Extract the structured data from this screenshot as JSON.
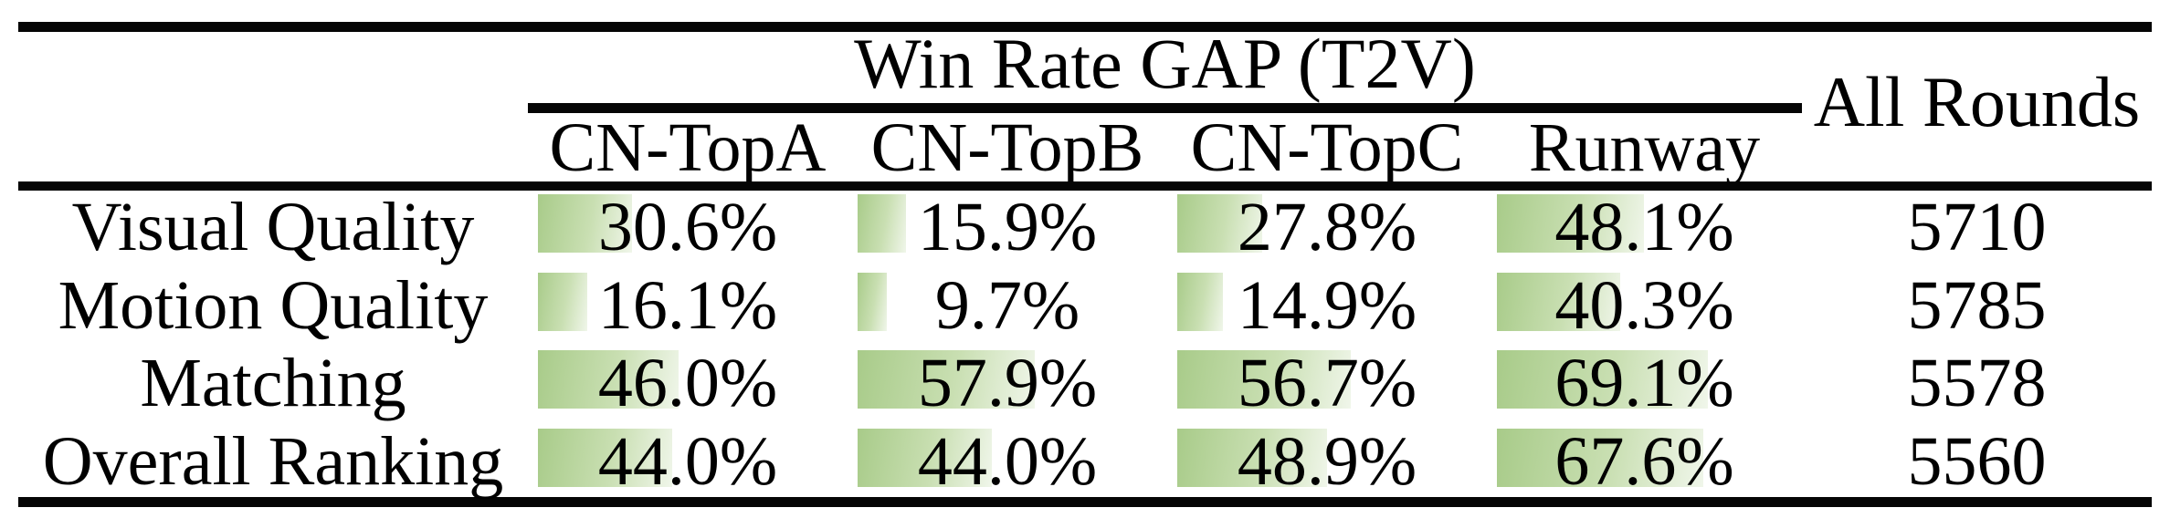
{
  "table": {
    "group_header": "Win Rate GAP (T2V)",
    "all_rounds_header": "All Rounds",
    "columns": [
      "CN-TopA",
      "CN-TopB",
      "CN-TopC",
      "Runway"
    ],
    "rows": [
      {
        "label": "Visual Quality",
        "cells": [
          {
            "text": "30.6%",
            "value": 30.6
          },
          {
            "text": "15.9%",
            "value": 15.9
          },
          {
            "text": "27.8%",
            "value": 27.8
          },
          {
            "text": "48.1%",
            "value": 48.1
          }
        ],
        "all_rounds": "5710"
      },
      {
        "label": "Motion Quality",
        "cells": [
          {
            "text": "16.1%",
            "value": 16.1
          },
          {
            "text": "9.7%",
            "value": 9.7
          },
          {
            "text": "14.9%",
            "value": 14.9
          },
          {
            "text": "40.3%",
            "value": 40.3
          }
        ],
        "all_rounds": "5785"
      },
      {
        "label": "Matching",
        "cells": [
          {
            "text": "46.0%",
            "value": 46.0
          },
          {
            "text": "57.9%",
            "value": 57.9
          },
          {
            "text": "56.7%",
            "value": 56.7
          },
          {
            "text": "69.1%",
            "value": 69.1
          }
        ],
        "all_rounds": "5578"
      },
      {
        "label": "Overall Ranking",
        "cells": [
          {
            "text": "44.0%",
            "value": 44.0
          },
          {
            "text": "44.0%",
            "value": 44.0
          },
          {
            "text": "48.9%",
            "value": 48.9
          },
          {
            "text": "67.6%",
            "value": 67.6
          }
        ],
        "all_rounds": "5560"
      }
    ],
    "colors": {
      "bar_green": "#a8cb89",
      "bar_fade": "#f0f6ea",
      "rule_black": "#050505"
    }
  },
  "chart_data": {
    "type": "table",
    "title": "Win Rate GAP (T2V)",
    "columns": [
      "CN-TopA",
      "CN-TopB",
      "CN-TopC",
      "Runway",
      "All Rounds"
    ],
    "row_labels": [
      "Visual Quality",
      "Motion Quality",
      "Matching",
      "Overall Ranking"
    ],
    "series": [
      {
        "name": "Visual Quality",
        "win_rate_gap_pct": [
          30.6,
          15.9,
          27.8,
          48.1
        ],
        "all_rounds": 5710
      },
      {
        "name": "Motion Quality",
        "win_rate_gap_pct": [
          16.1,
          9.7,
          14.9,
          40.3
        ],
        "all_rounds": 5785
      },
      {
        "name": "Matching",
        "win_rate_gap_pct": [
          46.0,
          57.9,
          56.7,
          69.1
        ],
        "all_rounds": 5578
      },
      {
        "name": "Overall Ranking",
        "win_rate_gap_pct": [
          44.0,
          44.0,
          48.9,
          67.6
        ],
        "all_rounds": 5560
      }
    ],
    "bar_scale": "in-cell bars, width proportional to percentage, 100% ≈ 335px"
  }
}
